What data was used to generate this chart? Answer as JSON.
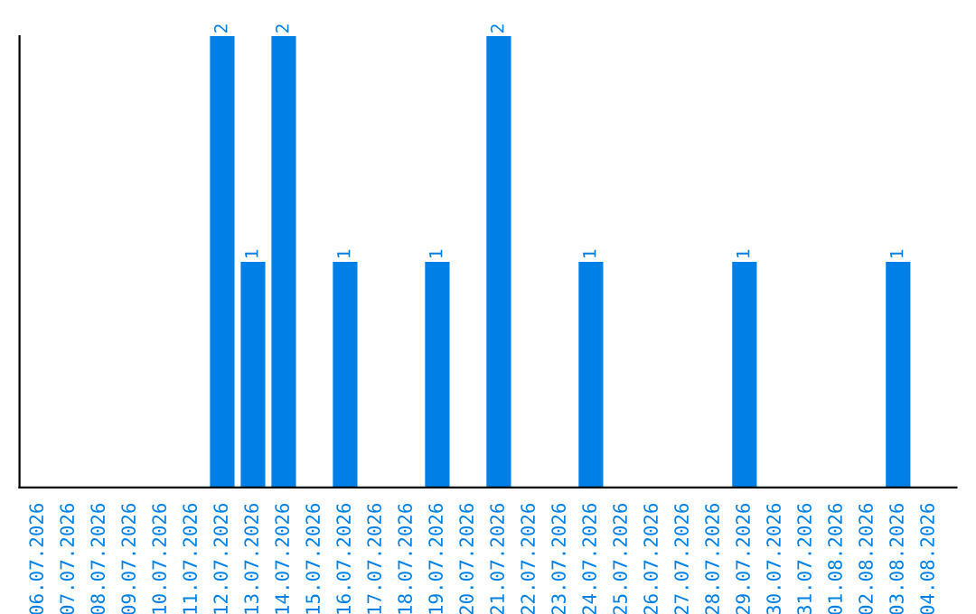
{
  "chart_data": {
    "type": "bar",
    "categories": [
      "06.07.2026",
      "07.07.2026",
      "08.07.2026",
      "09.07.2026",
      "10.07.2026",
      "11.07.2026",
      "12.07.2026",
      "13.07.2026",
      "14.07.2026",
      "15.07.2026",
      "16.07.2026",
      "17.07.2026",
      "18.07.2026",
      "19.07.2026",
      "20.07.2026",
      "21.07.2026",
      "22.07.2026",
      "23.07.2026",
      "24.07.2026",
      "25.07.2026",
      "26.07.2026",
      "27.07.2026",
      "28.07.2026",
      "29.07.2026",
      "30.07.2026",
      "31.07.2026",
      "01.08.2026",
      "02.08.2026",
      "03.08.2026",
      "04.08.2026"
    ],
    "values": [
      0,
      0,
      0,
      0,
      0,
      0,
      2,
      1,
      2,
      0,
      1,
      0,
      0,
      1,
      0,
      2,
      0,
      0,
      1,
      0,
      0,
      0,
      0,
      1,
      0,
      0,
      0,
      0,
      1,
      0
    ],
    "value_labels": [
      null,
      null,
      null,
      null,
      null,
      null,
      "2",
      "1",
      "2",
      null,
      "1",
      null,
      null,
      "1",
      null,
      "2",
      null,
      null,
      "1",
      null,
      null,
      null,
      null,
      "1",
      null,
      null,
      null,
      null,
      "1",
      null
    ],
    "color": "#0080e6",
    "grid": false,
    "legend": false
  }
}
